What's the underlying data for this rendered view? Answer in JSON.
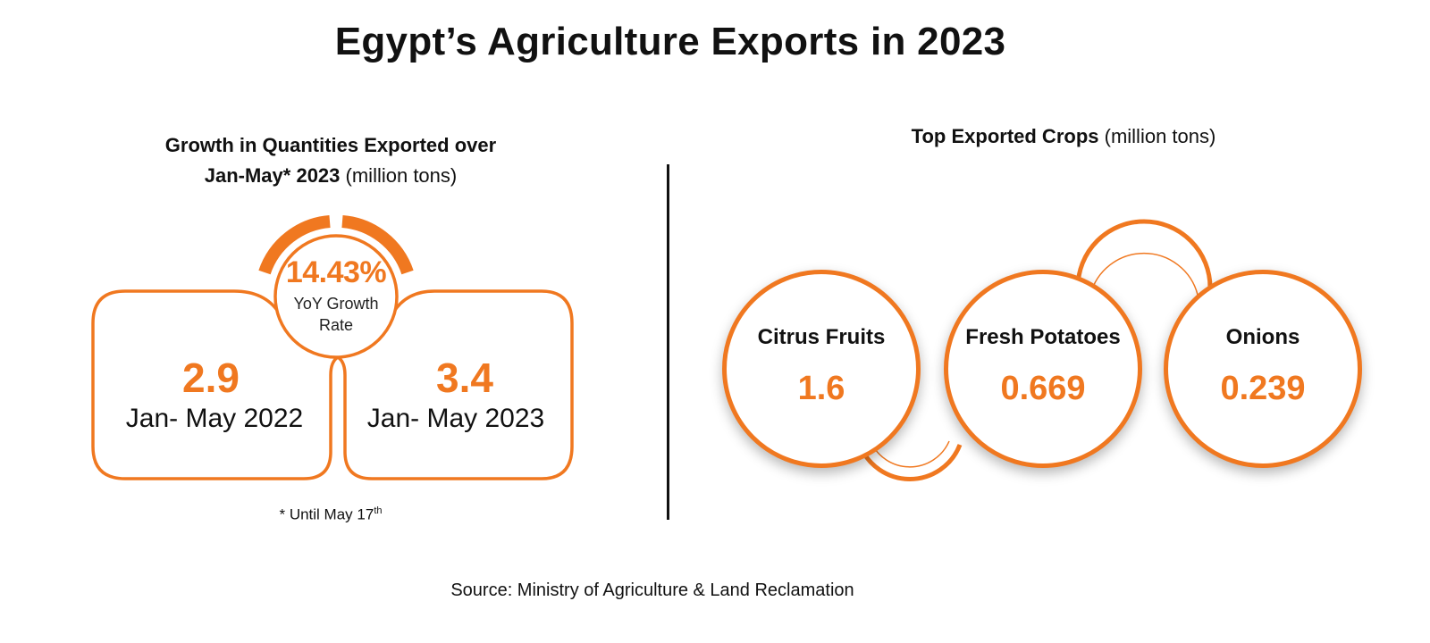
{
  "title": "Egypt’s Agriculture Exports in 2023",
  "accent_color": "#f07820",
  "growth_panel": {
    "subtitle_bold_1": "Growth in Quantities Exported over",
    "subtitle_bold_2": "Jan-May* 2023",
    "subtitle_unit": "(million tons)",
    "growth_rate": "14.43%",
    "growth_label_1": "YoY Growth",
    "growth_label_2": "Rate",
    "footnote": "* Until May 17",
    "footnote_sup": "th"
  },
  "crops_panel": {
    "subtitle_bold": "Top Exported Crops",
    "subtitle_unit": "(million tons)"
  },
  "source": "Source: Ministry of Agriculture & Land Reclamation",
  "chart_data": [
    {
      "type": "table",
      "title": "Growth in Quantities Exported over Jan-May* 2023 (million tons)",
      "categories": [
        "Jan- May 2022",
        "Jan- May 2023"
      ],
      "values": [
        "2.9",
        "3.4"
      ],
      "annotation": "14.43% YoY Growth Rate"
    },
    {
      "type": "table",
      "title": "Top Exported Crops (million tons)",
      "categories": [
        "Citrus Fruits",
        "Fresh Potatoes",
        "Onions"
      ],
      "values": [
        "1.6",
        "0.669",
        "0.239"
      ]
    }
  ]
}
